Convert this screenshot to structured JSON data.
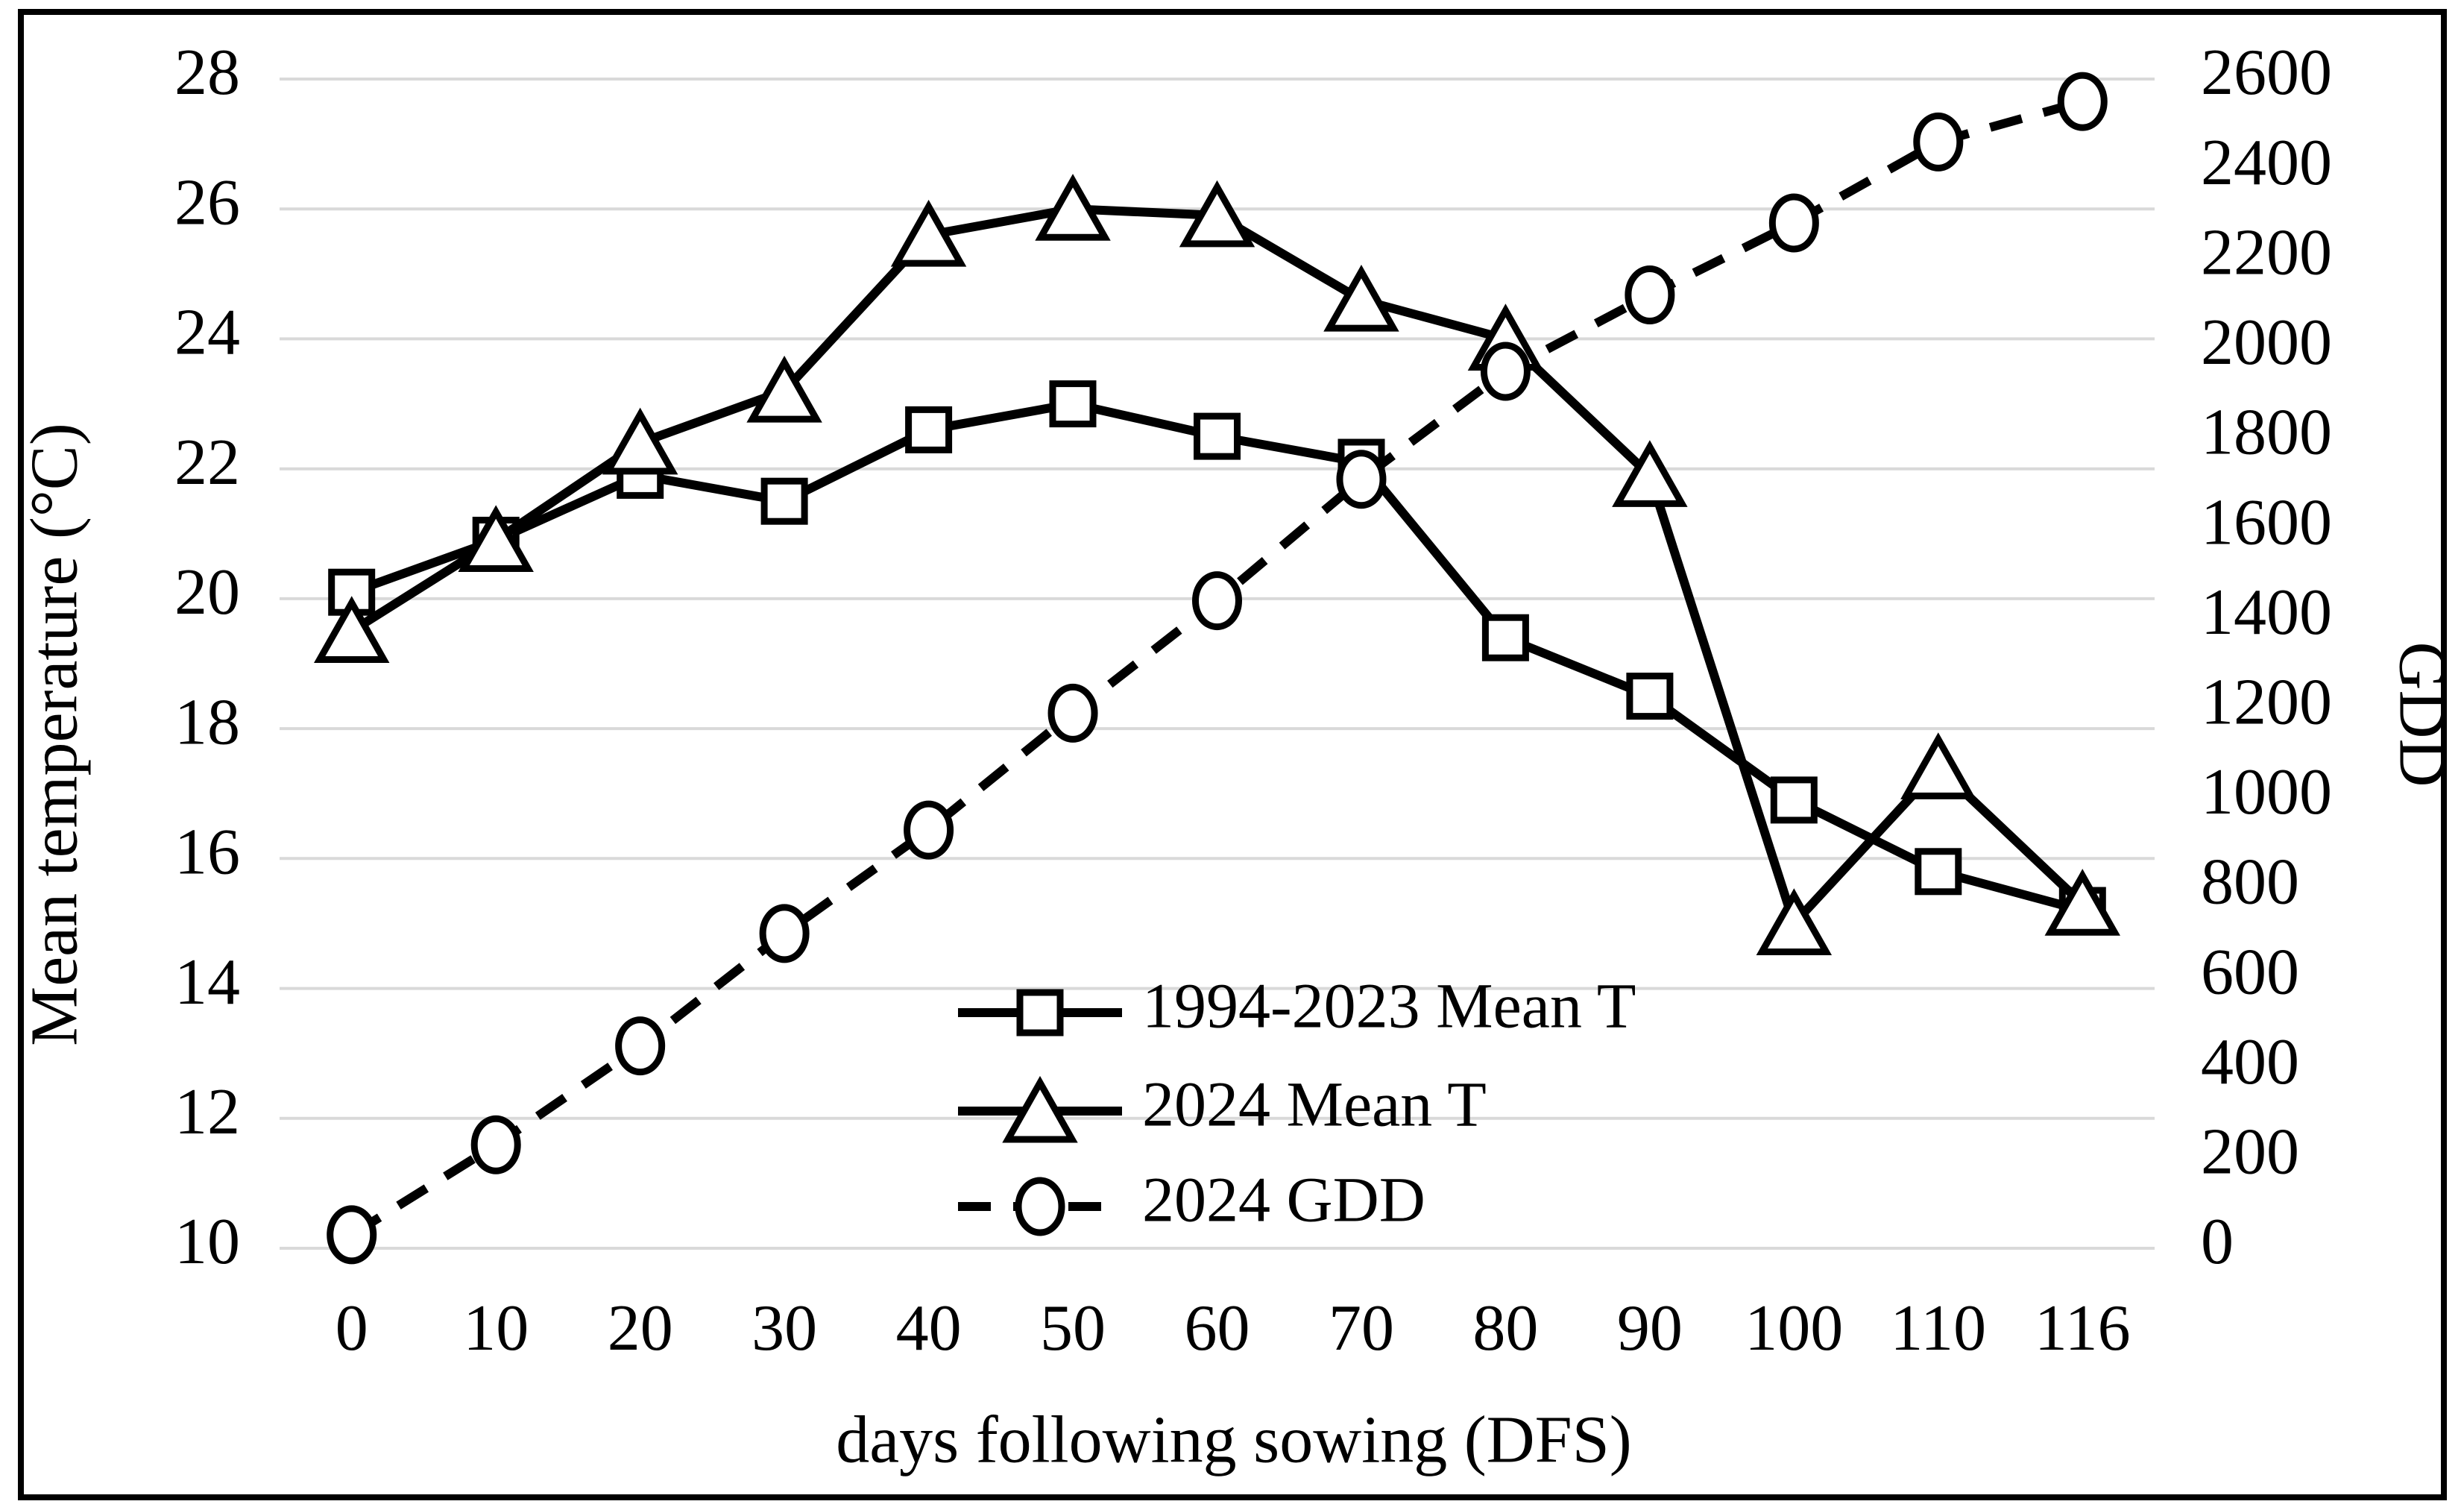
{
  "figure": {
    "border_color": "#000000",
    "background_color": "#ffffff"
  },
  "chart_data": {
    "type": "line",
    "title": "",
    "xlabel": "days following sowing (DFS)",
    "ylabel_left": "Mean temperature (°C)",
    "ylabel_right": "GDD",
    "x_categories": [
      "0",
      "10",
      "20",
      "30",
      "40",
      "50",
      "60",
      "70",
      "80",
      "90",
      "100",
      "110",
      "116"
    ],
    "y_left_axis": {
      "min": 10,
      "max": 28,
      "tick_labels": [
        "28",
        "26",
        "24",
        "22",
        "20",
        "18",
        "16",
        "14",
        "12",
        "10"
      ],
      "tick_values": [
        28,
        26,
        24,
        22,
        20,
        18,
        16,
        14,
        12,
        10
      ]
    },
    "y_right_axis": {
      "min": 0,
      "max": 2600,
      "tick_labels": [
        "2600",
        "2400",
        "2200",
        "2000",
        "1800",
        "1600",
        "1400",
        "1200",
        "1000",
        "800",
        "600",
        "400",
        "200",
        "0"
      ],
      "tick_values": [
        2600,
        2400,
        2200,
        2000,
        1800,
        1600,
        1400,
        1200,
        1000,
        800,
        600,
        400,
        200,
        0
      ]
    },
    "grid": "horizontal",
    "gridline_color": "#d9d9d9",
    "series_color": "#000000",
    "legend_position": "inside-bottom-center",
    "series": [
      {
        "name": "1994-2023 Mean T",
        "axis": "left",
        "marker": "square",
        "line": "solid",
        "values": [
          20.1,
          20.9,
          21.9,
          21.5,
          22.6,
          23.0,
          22.5,
          22.1,
          19.4,
          18.5,
          16.9,
          15.8,
          15.2
        ]
      },
      {
        "name": "2024 Mean T",
        "axis": "left",
        "marker": "triangle",
        "line": "solid",
        "values": [
          19.5,
          20.9,
          22.4,
          23.2,
          25.6,
          26.0,
          25.9,
          24.6,
          24.0,
          21.9,
          15.0,
          17.4,
          15.3
        ]
      },
      {
        "name": "2024 GDD",
        "axis": "right",
        "marker": "circle",
        "line": "dashed",
        "values": [
          30,
          230,
          450,
          700,
          930,
          1190,
          1440,
          1710,
          1950,
          2120,
          2280,
          2460,
          2550
        ]
      }
    ]
  }
}
